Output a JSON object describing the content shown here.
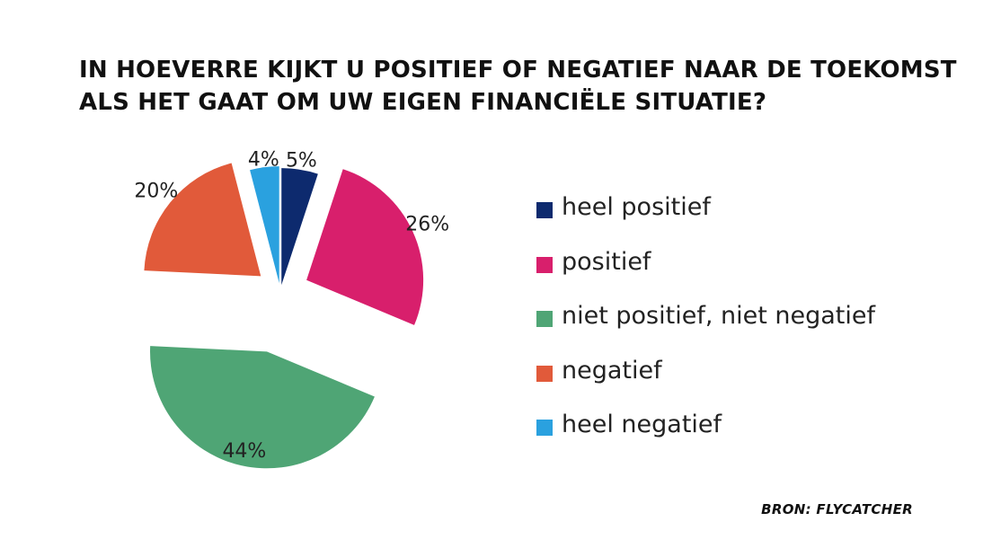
{
  "title_lines": [
    "IN HOEVERRE KIJKT U POSITIEF OF NEGATIEF NAAR DE TOEKOMST",
    "ALS HET GAAT OM UW EIGEN FINANCIËLE SITUATIE?"
  ],
  "source": "BRON: FLYCATCHER",
  "chart_data": {
    "type": "pie",
    "title": "IN HOEVERRE KIJKT U POSITIEF OF NEGATIEF NAAR DE TOEKOMST ALS HET GAAT OM UW EIGEN FINANCIËLE SITUATIE?",
    "legend_position": "right",
    "exploded": true,
    "slices": [
      {
        "label": "heel positief",
        "value": 5,
        "value_label": "5%",
        "color": "#0d2a6e"
      },
      {
        "label": "positief",
        "value": 26,
        "value_label": "26%",
        "color": "#d81f6c"
      },
      {
        "label": "niet positief, niet negatief",
        "value": 44,
        "value_label": "44%",
        "color": "#4fa575"
      },
      {
        "label": "negatief",
        "value": 20,
        "value_label": "20%",
        "color": "#e15a3a"
      },
      {
        "label": "heel negatief",
        "value": 4,
        "value_label": "4%",
        "color": "#2aa1df"
      }
    ]
  }
}
